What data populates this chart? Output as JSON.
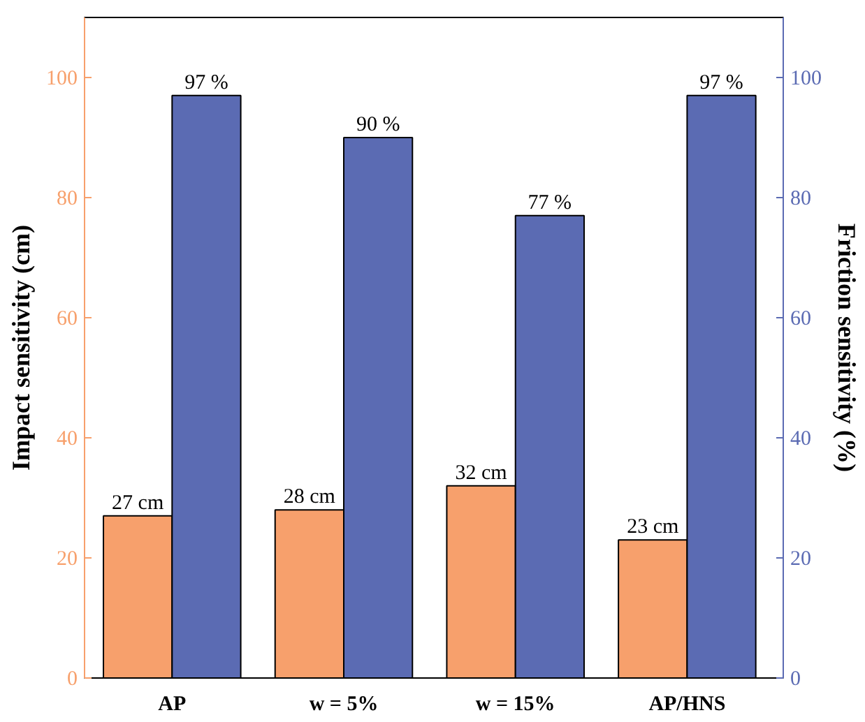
{
  "chart_data": {
    "type": "bar",
    "categories": [
      "AP",
      "w = 5%",
      "w = 15%",
      "AP/HNS"
    ],
    "ylabel": "Impact sensitivity (cm)",
    "y2label": "Friction sensitivity (%)",
    "ylim": [
      0,
      110
    ],
    "yticks": [
      0,
      20,
      40,
      60,
      80,
      100
    ],
    "y2lim": [
      0,
      110
    ],
    "y2ticks": [
      0,
      20,
      40,
      60,
      80,
      100
    ],
    "series": [
      {
        "color": "#f7a06c",
        "values": [
          27,
          28,
          32,
          23
        ],
        "value_labels": [
          "27 cm",
          "28 cm",
          "32 cm",
          "23 cm"
        ],
        "axis": "y"
      },
      {
        "color": "#5b6bb3",
        "values": [
          97,
          90,
          77,
          97
        ],
        "value_labels": [
          "97 %",
          "90 %",
          "77 %",
          "97 %"
        ],
        "axis": "y2"
      }
    ],
    "grid": false
  }
}
